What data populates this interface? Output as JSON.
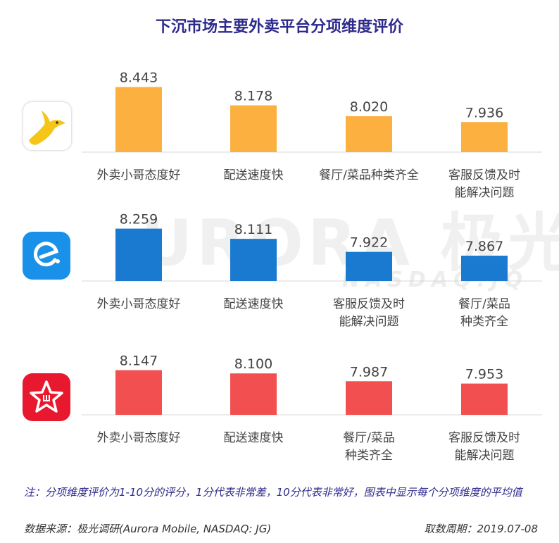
{
  "title": "下沉市场主要外卖平台分项维度评价",
  "watermark": {
    "brand": "URORA 极光",
    "ticker": "NASDAQ:JQ"
  },
  "note": "注：分项维度评价为1-10分的评分，1分代表非常差，10分代表非常好，图表中显示每个分项维度的平均值",
  "source": "数据来源：极光调研(Aurora Mobile, NASDAQ: JG)",
  "period": "取数周期：2019.07-08",
  "icons": [
    "meituan-kangaroo-icon",
    "eleme-logo-icon",
    "baidu-waimai-star-icon"
  ],
  "colors": {
    "meituan": "#fcb040",
    "eleme": "#1a7ad0",
    "baidu": "#f25050",
    "title": "#2e2a8c"
  },
  "chart_data": [
    {
      "type": "bar",
      "color": "#fcb040",
      "categories": [
        "外卖小哥态度好",
        "配送速度快",
        "餐厅/菜品种类齐全",
        "客服反馈及时能解决问题"
      ],
      "category_lines": [
        [
          "外卖小哥态度好"
        ],
        [
          "配送速度快"
        ],
        [
          "餐厅/菜品种类齐全"
        ],
        [
          "客服反馈及时",
          "能解决问题"
        ]
      ],
      "values": [
        8.443,
        8.178,
        8.02,
        7.936
      ],
      "value_labels": [
        "8.443",
        "8.178",
        "8.020",
        "7.936"
      ]
    },
    {
      "type": "bar",
      "color": "#1a7ad0",
      "categories": [
        "外卖小哥态度好",
        "配送速度快",
        "客服反馈及时能解决问题",
        "餐厅/菜品种类齐全"
      ],
      "category_lines": [
        [
          "外卖小哥态度好"
        ],
        [
          "配送速度快"
        ],
        [
          "客服反馈及时",
          "能解决问题"
        ],
        [
          "餐厅/菜品",
          "种类齐全"
        ]
      ],
      "values": [
        8.259,
        8.111,
        7.922,
        7.867
      ],
      "value_labels": [
        "8.259",
        "8.111",
        "7.922",
        "7.867"
      ]
    },
    {
      "type": "bar",
      "color": "#f25050",
      "categories": [
        "外卖小哥态度好",
        "配送速度快",
        "餐厅/菜品种类齐全",
        "客服反馈及时能解决问题"
      ],
      "category_lines": [
        [
          "外卖小哥态度好"
        ],
        [
          "配送速度快"
        ],
        [
          "餐厅/菜品",
          "种类齐全"
        ],
        [
          "客服反馈及时",
          "能解决问题"
        ]
      ],
      "values": [
        8.147,
        8.1,
        7.987,
        7.953
      ],
      "value_labels": [
        "8.147",
        "8.100",
        "7.987",
        "7.953"
      ]
    }
  ]
}
